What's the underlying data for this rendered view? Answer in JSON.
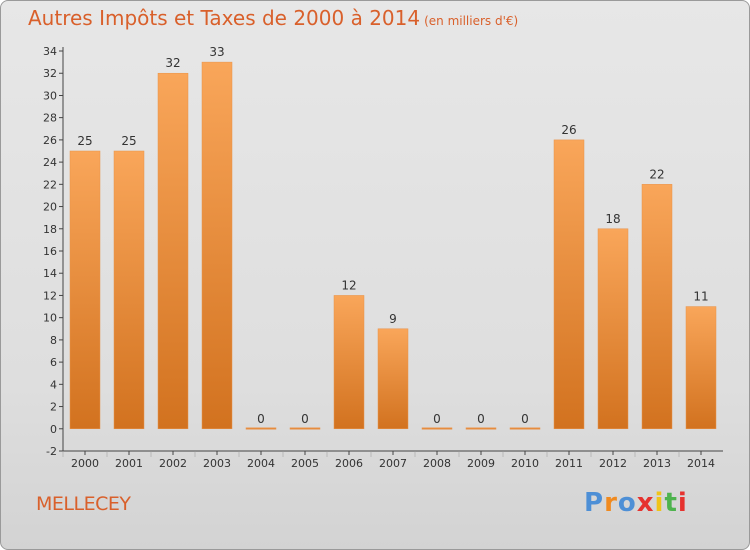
{
  "title": "Autres Impôts et Taxes de 2000 à 2014",
  "title_unit": "(en milliers d'€)",
  "commune": "MELLECEY",
  "brand": {
    "letters": [
      "P",
      "r",
      "o",
      "x",
      "i",
      "t",
      "i"
    ],
    "colors": [
      "#4d8fd6",
      "#f08a1f",
      "#4d8fd6",
      "#e6322e",
      "#f0c419",
      "#4db34d",
      "#e6322e"
    ]
  },
  "colors": {
    "bar_top": "#f9a65a",
    "bar_bottom": "#d2721f",
    "text": "#d9602b",
    "axis": "#444444"
  },
  "chart_data": {
    "type": "bar",
    "title": "Autres Impôts et Taxes de 2000 à 2014",
    "subtitle": "(en milliers d'€)",
    "categories": [
      "2000",
      "2001",
      "2002",
      "2003",
      "2004",
      "2005",
      "2006",
      "2007",
      "2008",
      "2009",
      "2010",
      "2011",
      "2012",
      "2013",
      "2014"
    ],
    "values": [
      25,
      25,
      32,
      33,
      0,
      0,
      12,
      9,
      0,
      0,
      0,
      26,
      18,
      22,
      11
    ],
    "ylim": [
      -2,
      34
    ],
    "yticks": [
      -2,
      0,
      2,
      4,
      6,
      8,
      10,
      12,
      14,
      16,
      18,
      20,
      22,
      24,
      26,
      28,
      30,
      32,
      34
    ],
    "grid": false,
    "legend": "none"
  }
}
